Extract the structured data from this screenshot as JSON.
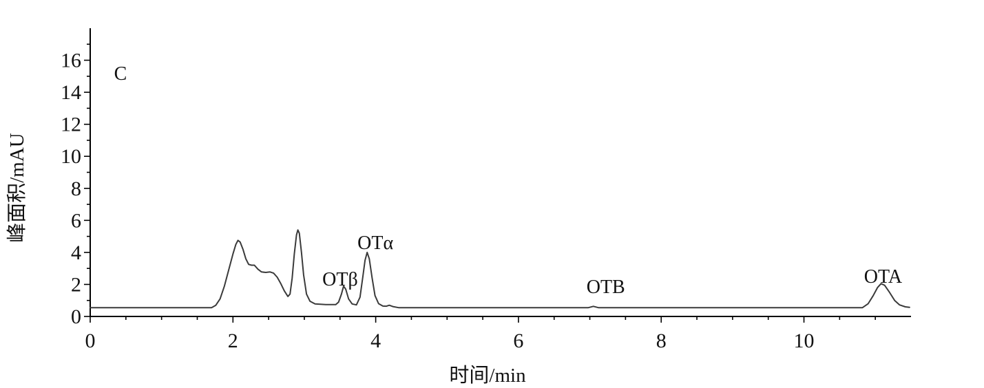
{
  "chart_data": {
    "type": "line",
    "panel_label": "C",
    "xlabel": "时间/min",
    "ylabel": "峰面积/mAU",
    "xlim": [
      0,
      11.5
    ],
    "ylim": [
      0,
      18
    ],
    "xticks": [
      0,
      2,
      4,
      6,
      8,
      10
    ],
    "yticks": [
      0,
      2,
      4,
      6,
      8,
      10,
      12,
      14,
      16
    ],
    "x_minor_step": 0.5,
    "y_minor_step": 1,
    "grid": false,
    "legend": "none",
    "series": [
      {
        "color": "#3a3a3a",
        "x": [
          0,
          1.7,
          1.76,
          1.82,
          1.88,
          1.94,
          2.0,
          2.04,
          2.07,
          2.1,
          2.14,
          2.18,
          2.22,
          2.26,
          2.3,
          2.35,
          2.4,
          2.46,
          2.52,
          2.57,
          2.62,
          2.67,
          2.72,
          2.77,
          2.8,
          2.83,
          2.86,
          2.89,
          2.91,
          2.93,
          2.96,
          2.99,
          3.03,
          3.08,
          3.15,
          3.3,
          3.44,
          3.48,
          3.52,
          3.55,
          3.58,
          3.62,
          3.67,
          3.73,
          3.78,
          3.82,
          3.85,
          3.88,
          3.91,
          3.95,
          3.99,
          4.04,
          4.1,
          4.15,
          4.19,
          4.24,
          4.32,
          6.98,
          7.05,
          7.12,
          10.82,
          10.9,
          10.97,
          11.03,
          11.08,
          11.13,
          11.2,
          11.27,
          11.34,
          11.42,
          11.48
        ],
        "y": [
          0.55,
          0.55,
          0.7,
          1.1,
          1.9,
          2.9,
          3.9,
          4.5,
          4.75,
          4.65,
          4.2,
          3.6,
          3.25,
          3.2,
          3.2,
          2.95,
          2.78,
          2.75,
          2.78,
          2.7,
          2.45,
          2.05,
          1.6,
          1.25,
          1.4,
          2.4,
          3.9,
          5.1,
          5.4,
          5.2,
          4.0,
          2.6,
          1.4,
          0.95,
          0.78,
          0.74,
          0.74,
          0.9,
          1.4,
          1.9,
          1.7,
          1.1,
          0.78,
          0.72,
          1.2,
          2.5,
          3.5,
          4.0,
          3.6,
          2.4,
          1.3,
          0.8,
          0.65,
          0.64,
          0.7,
          0.62,
          0.55,
          0.55,
          0.63,
          0.55,
          0.55,
          0.8,
          1.3,
          1.8,
          2.05,
          1.95,
          1.5,
          1.0,
          0.72,
          0.6,
          0.57
        ]
      }
    ],
    "annotations": [
      {
        "text": "OTβ",
        "x": 3.55
      },
      {
        "text": "OTα",
        "x": 3.88
      },
      {
        "text": "OTB",
        "x": 7.05
      },
      {
        "text": "OTA",
        "x": 11.08
      }
    ]
  },
  "colors": {
    "axis": "#000000",
    "text": "#111111",
    "background": "#ffffff"
  }
}
